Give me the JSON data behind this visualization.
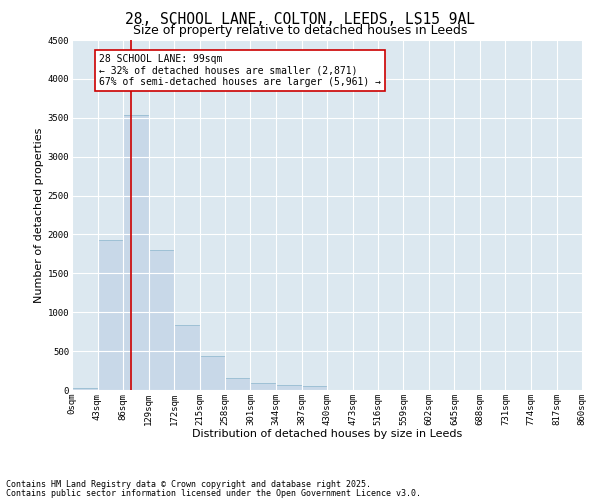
{
  "title_line1": "28, SCHOOL LANE, COLTON, LEEDS, LS15 9AL",
  "title_line2": "Size of property relative to detached houses in Leeds",
  "xlabel": "Distribution of detached houses by size in Leeds",
  "ylabel": "Number of detached properties",
  "bar_color": "#c8d8e8",
  "bar_edge_color": "#8ab4cc",
  "background_color": "#ffffff",
  "plot_bg_color": "#dce8f0",
  "grid_color": "#ffffff",
  "vline_color": "#cc0000",
  "vline_x": 99,
  "annotation_text": "28 SCHOOL LANE: 99sqm\n← 32% of detached houses are smaller (2,871)\n67% of semi-detached houses are larger (5,961) →",
  "annotation_box_color": "#cc0000",
  "bins_left": [
    0,
    43,
    86,
    129,
    172,
    215,
    258,
    301,
    344,
    387,
    430,
    473,
    516,
    559,
    602,
    645,
    688,
    731,
    774,
    817
  ],
  "bin_width": 43,
  "bar_heights": [
    20,
    1930,
    3540,
    1800,
    840,
    440,
    150,
    85,
    60,
    50,
    0,
    0,
    0,
    0,
    0,
    0,
    0,
    0,
    0,
    0
  ],
  "ylim": [
    0,
    4500
  ],
  "yticks": [
    0,
    500,
    1000,
    1500,
    2000,
    2500,
    3000,
    3500,
    4000,
    4500
  ],
  "xtick_labels": [
    "0sqm",
    "43sqm",
    "86sqm",
    "129sqm",
    "172sqm",
    "215sqm",
    "258sqm",
    "301sqm",
    "344sqm",
    "387sqm",
    "430sqm",
    "473sqm",
    "516sqm",
    "559sqm",
    "602sqm",
    "645sqm",
    "688sqm",
    "731sqm",
    "774sqm",
    "817sqm",
    "860sqm"
  ],
  "footnote1": "Contains HM Land Registry data © Crown copyright and database right 2025.",
  "footnote2": "Contains public sector information licensed under the Open Government Licence v3.0.",
  "title_fontsize": 10.5,
  "subtitle_fontsize": 9,
  "axis_label_fontsize": 8,
  "tick_fontsize": 6.5,
  "annotation_fontsize": 7,
  "footnote_fontsize": 6
}
